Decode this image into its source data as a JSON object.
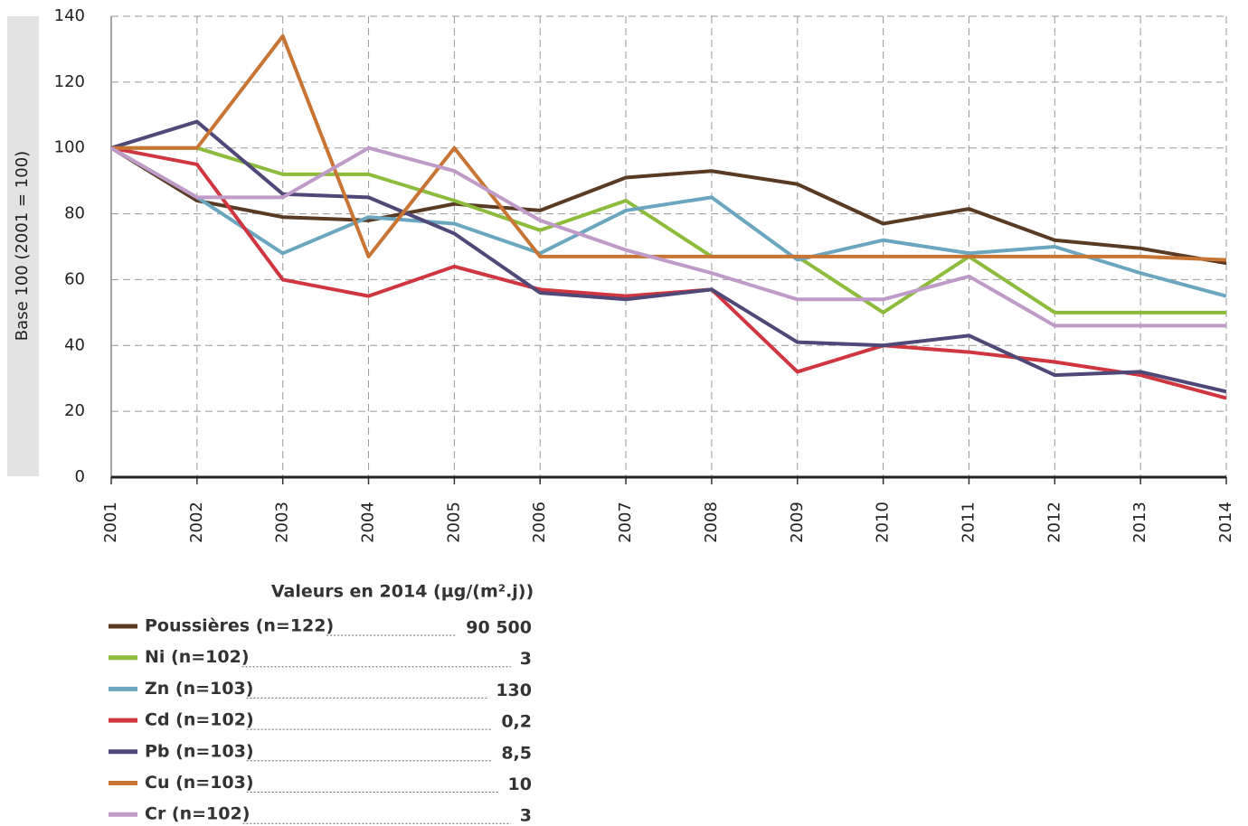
{
  "chart_data": {
    "type": "line",
    "y_label": "Base 100 (2001 = 100)",
    "legend_title": "Valeurs en 2014 (µg/(m².j))",
    "x": [
      2001,
      2002,
      2003,
      2004,
      2005,
      2006,
      2007,
      2008,
      2009,
      2010,
      2011,
      2012,
      2013,
      2014
    ],
    "xlim": [
      2001,
      2014
    ],
    "xticks": [
      2001,
      2002,
      2003,
      2004,
      2005,
      2006,
      2007,
      2008,
      2009,
      2010,
      2011,
      2012,
      2013,
      2014
    ],
    "ylim": [
      0,
      140
    ],
    "yticks": [
      0,
      20,
      40,
      60,
      80,
      100,
      120,
      140
    ],
    "grid": true,
    "series": [
      {
        "name": "Poussières (n=122)",
        "value_2014": "90 500",
        "color": "#5a3a22",
        "values": [
          100,
          84,
          79,
          78,
          83,
          81,
          91,
          93,
          89,
          77,
          81.5,
          72,
          69.5,
          65
        ]
      },
      {
        "name": "Ni (n=102)",
        "value_2014": "3",
        "color": "#8dbb3c",
        "values": [
          100,
          100,
          92,
          92,
          84,
          75,
          84,
          67,
          67,
          50,
          67,
          50,
          50,
          50
        ]
      },
      {
        "name": "Zn (n=103)",
        "value_2014": "130",
        "color": "#6aa6c0",
        "values": [
          100,
          85,
          68,
          79,
          77,
          68,
          81,
          85,
          66,
          72,
          68,
          70,
          62,
          55
        ]
      },
      {
        "name": "Cd (n=102)",
        "value_2014": "0,2",
        "color": "#d0363f",
        "values": [
          100,
          95,
          60,
          55,
          64,
          57,
          55,
          57,
          32,
          40,
          38,
          35,
          31,
          24
        ]
      },
      {
        "name": "Pb (n=103)",
        "value_2014": "8,5",
        "color": "#4f4878",
        "values": [
          100,
          108,
          86,
          85,
          74,
          56,
          54,
          57,
          41,
          40,
          43,
          31,
          32,
          26
        ]
      },
      {
        "name": "Cu (n=103)",
        "value_2014": "10",
        "color": "#c87533",
        "values": [
          100,
          100,
          134,
          67,
          100,
          67,
          67,
          67,
          67,
          67,
          67,
          67,
          67,
          66
        ]
      },
      {
        "name": "Cr (n=102)",
        "value_2014": "3",
        "color": "#c09ac8",
        "values": [
          100,
          85,
          85,
          100,
          93,
          78,
          69,
          62,
          54,
          54,
          61,
          46,
          46,
          46
        ]
      }
    ]
  }
}
